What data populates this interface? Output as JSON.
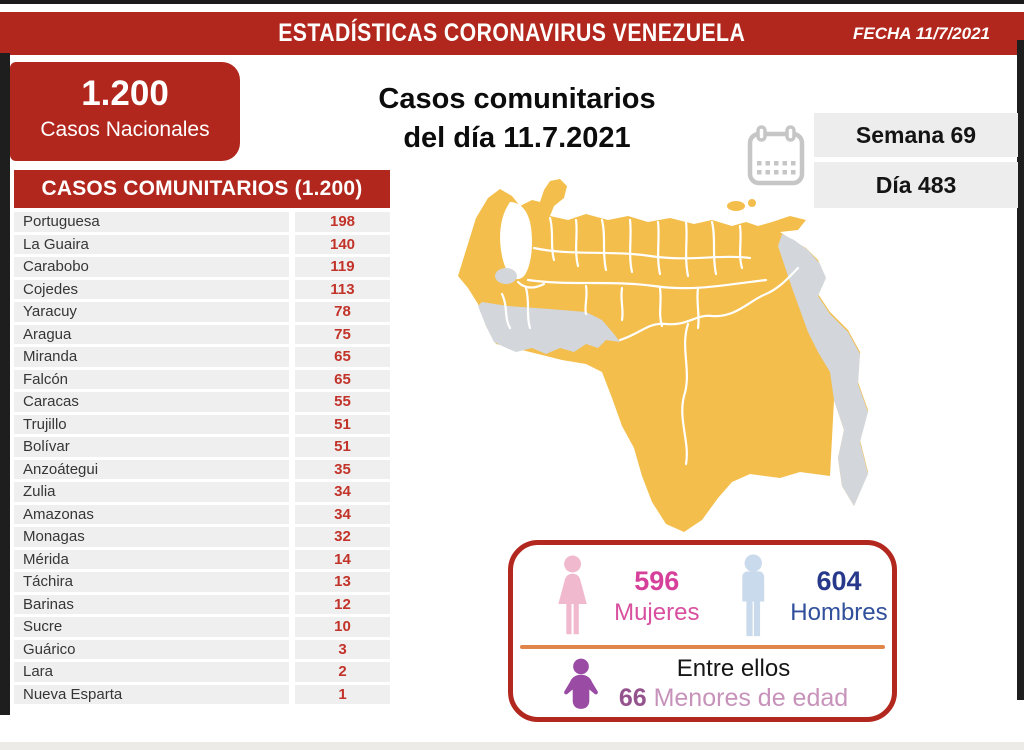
{
  "banner": {
    "title": "ESTADÍSTICAS CORONAVIRUS VENEZUELA",
    "date_label": "FECHA 11/7/2021"
  },
  "national": {
    "value": "1.200",
    "label": "Casos Nacionales"
  },
  "title": {
    "line1": "Casos comunitarios",
    "line2": "del día 11.7.2021"
  },
  "period": {
    "week": "Semana 69",
    "day": "Día 483"
  },
  "table": {
    "header": "CASOS COMUNITARIOS (1.200)",
    "rows": [
      {
        "state": "Portuguesa",
        "cases": 198
      },
      {
        "state": "La Guaira",
        "cases": 140
      },
      {
        "state": "Carabobo",
        "cases": 119
      },
      {
        "state": "Cojedes",
        "cases": 113
      },
      {
        "state": "Yaracuy",
        "cases": 78
      },
      {
        "state": "Aragua",
        "cases": 75
      },
      {
        "state": "Miranda",
        "cases": 65
      },
      {
        "state": "Falcón",
        "cases": 65
      },
      {
        "state": "Caracas",
        "cases": 55
      },
      {
        "state": "Trujillo",
        "cases": 51
      },
      {
        "state": "Bolívar",
        "cases": 51
      },
      {
        "state": "Anzoátegui",
        "cases": 35
      },
      {
        "state": "Zulia",
        "cases": 34
      },
      {
        "state": "Amazonas",
        "cases": 34
      },
      {
        "state": "Monagas",
        "cases": 32
      },
      {
        "state": "Mérida",
        "cases": 14
      },
      {
        "state": "Táchira",
        "cases": 13
      },
      {
        "state": "Barinas",
        "cases": 12
      },
      {
        "state": "Sucre",
        "cases": 10
      },
      {
        "state": "Guárico",
        "cases": 3
      },
      {
        "state": "Lara",
        "cases": 2
      },
      {
        "state": "Nueva Esparta",
        "cases": 1
      }
    ]
  },
  "map": {
    "country": "Venezuela",
    "highlight_color": "#F3BE4B",
    "inactive_color": "#D3D6DA",
    "border_color": "#FFFFFF"
  },
  "demographics": {
    "women": {
      "value": "596",
      "label": "Mujeres",
      "color": "#D6409A"
    },
    "men": {
      "value": "604",
      "label": "Hombres",
      "color": "#28398B"
    },
    "minors": {
      "intro": "Entre ellos",
      "value": "66",
      "label": "Menores de edad",
      "color": "#95538E"
    }
  },
  "colors": {
    "banner_red": "#B2271D",
    "table_value_red": "#C2332A",
    "divider_orange": "#E0854A"
  }
}
